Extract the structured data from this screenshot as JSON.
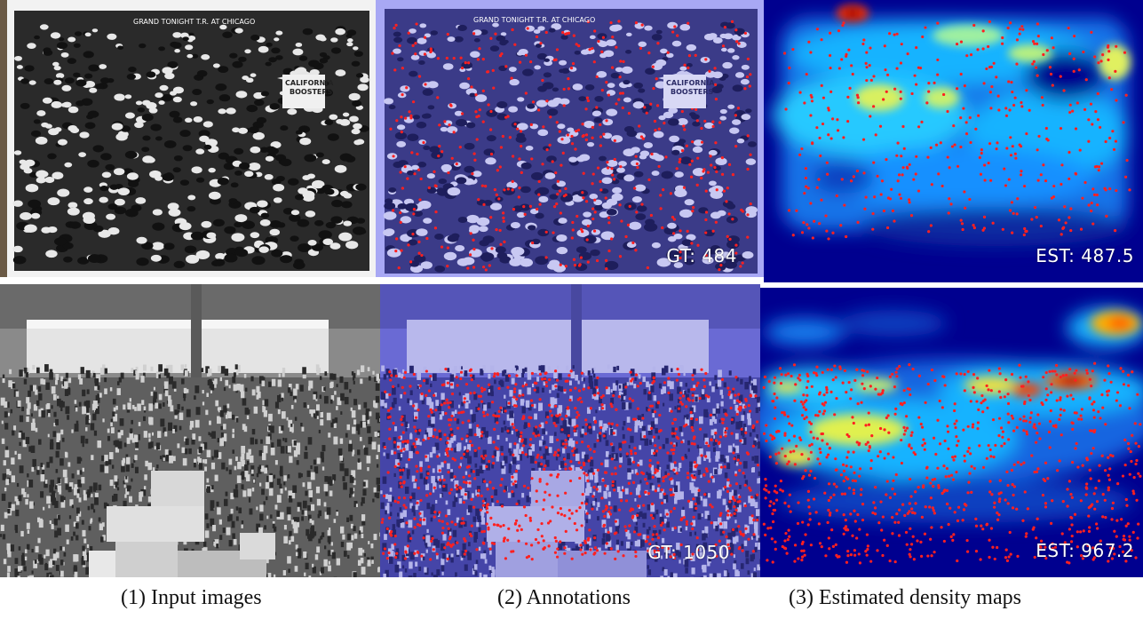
{
  "captions": [
    "(1) Input images",
    "(2) Annotations",
    "(3) Estimated density maps"
  ],
  "rows": [
    {
      "photo_caption": "GRAND TONIGHT T.R. AT CHICAGO",
      "sign_lines": [
        "CALIFORNIA",
        "BOOSTERS"
      ],
      "gt_label": "GT: 484",
      "est_label": "EST: 487.5"
    },
    {
      "gt_label": "GT: 1050",
      "est_label": "EST: 967.2"
    }
  ],
  "colors": {
    "annotation_tint": "#5a5ae6",
    "annotation_dot": "#ff2020",
    "density_low": "#00008f",
    "density_mid": "#19b3ff",
    "density_high": "#ffe000",
    "density_peak": "#ff2000"
  }
}
